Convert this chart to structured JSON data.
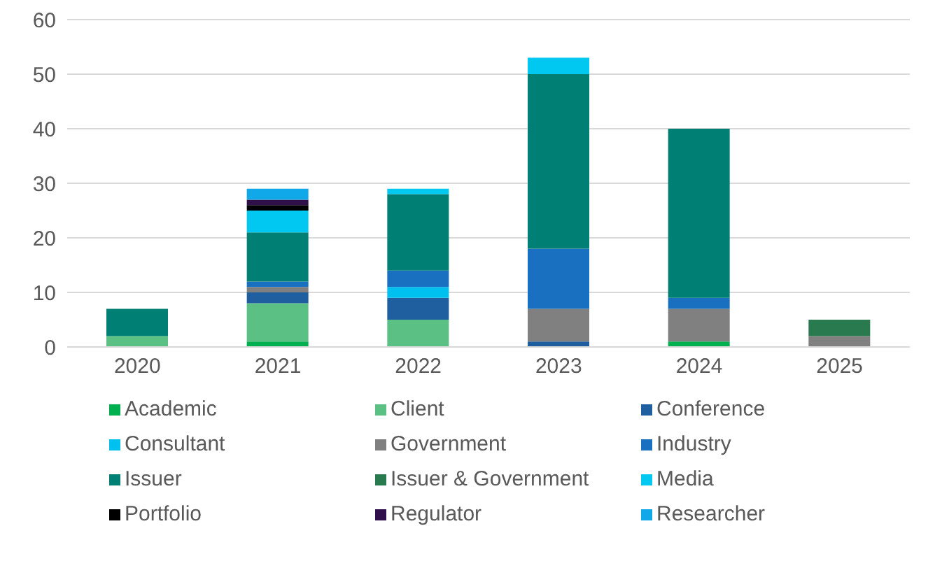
{
  "chart_data": {
    "type": "bar",
    "stacked": true,
    "categories": [
      "2020",
      "2021",
      "2022",
      "2023",
      "2024",
      "2025"
    ],
    "series": [
      {
        "name": "Academic",
        "color": "#00b050",
        "values": [
          0,
          1,
          0,
          0,
          1,
          0
        ]
      },
      {
        "name": "Client",
        "color": "#5bc083",
        "values": [
          2,
          7,
          5,
          0,
          0,
          0
        ]
      },
      {
        "name": "Conference",
        "color": "#1f5fa0",
        "values": [
          0,
          2,
          4,
          1,
          0,
          0
        ]
      },
      {
        "name": "Consultant",
        "color": "#00c0f0",
        "values": [
          0,
          0,
          2,
          0,
          0,
          0
        ]
      },
      {
        "name": "Government",
        "color": "#808080",
        "values": [
          0,
          1,
          0,
          6,
          6,
          2
        ]
      },
      {
        "name": "Industry",
        "color": "#1a70c0",
        "values": [
          0,
          1,
          3,
          11,
          2,
          0
        ]
      },
      {
        "name": "Issuer",
        "color": "#008075",
        "values": [
          5,
          9,
          14,
          32,
          31,
          0
        ]
      },
      {
        "name": "Issuer & Government",
        "color": "#2a7a50",
        "values": [
          0,
          0,
          0,
          0,
          0,
          3
        ]
      },
      {
        "name": "Media",
        "color": "#00c8f0",
        "values": [
          0,
          4,
          1,
          3,
          0,
          0
        ]
      },
      {
        "name": "Portfolio",
        "color": "#000000",
        "values": [
          0,
          1,
          0,
          0,
          0,
          0
        ]
      },
      {
        "name": "Regulator",
        "color": "#30104a",
        "values": [
          0,
          1,
          0,
          0,
          0,
          0
        ]
      },
      {
        "name": "Researcher",
        "color": "#10a8e8",
        "values": [
          0,
          2,
          0,
          0,
          0,
          0
        ]
      }
    ],
    "ylim": [
      0,
      60
    ],
    "yticks": [
      0,
      10,
      20,
      30,
      40,
      50,
      60
    ],
    "grid": "y",
    "legend": "bottom"
  }
}
